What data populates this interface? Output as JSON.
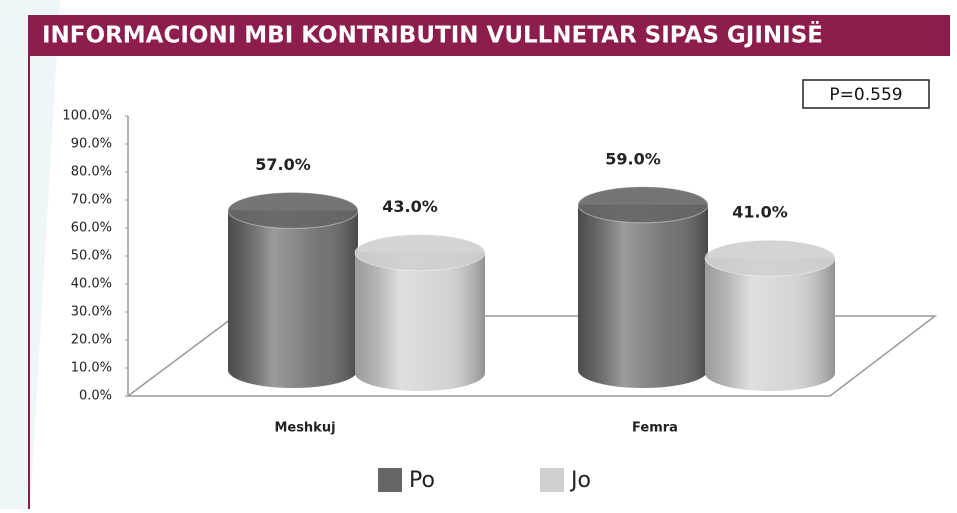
{
  "chart_data": {
    "type": "bar3d",
    "title": "INFORMACIONI MBI KONTRIBUTIN VULLNETAR SIPAS GJINISË",
    "annotation": "P=0.559",
    "categories": [
      "Meshkuj",
      "Femra"
    ],
    "series": [
      {
        "name": "Po",
        "color": "#666666",
        "values": [
          57,
          59
        ],
        "value_labels": [
          "57.0%",
          "59.0%"
        ]
      },
      {
        "name": "Jo",
        "color": "#cfcfcf",
        "values": [
          43,
          41
        ],
        "value_labels": [
          "43.0%",
          "41.0%"
        ]
      }
    ],
    "ylim": [
      0,
      100
    ],
    "yticks": [
      {
        "value": 0,
        "label": "0.0%"
      },
      {
        "value": 10,
        "label": "10.0%"
      },
      {
        "value": 20,
        "label": "20.0%"
      },
      {
        "value": 30,
        "label": "30.0%"
      },
      {
        "value": 40,
        "label": "40.0%"
      },
      {
        "value": 50,
        "label": "50.0%"
      },
      {
        "value": 60,
        "label": "60.0%"
      },
      {
        "value": 70,
        "label": "70.0%"
      },
      {
        "value": 80,
        "label": "80.0%"
      },
      {
        "value": 90,
        "label": "90.0%"
      },
      {
        "value": 100,
        "label": "100.0%"
      }
    ],
    "legend": "bottom"
  }
}
